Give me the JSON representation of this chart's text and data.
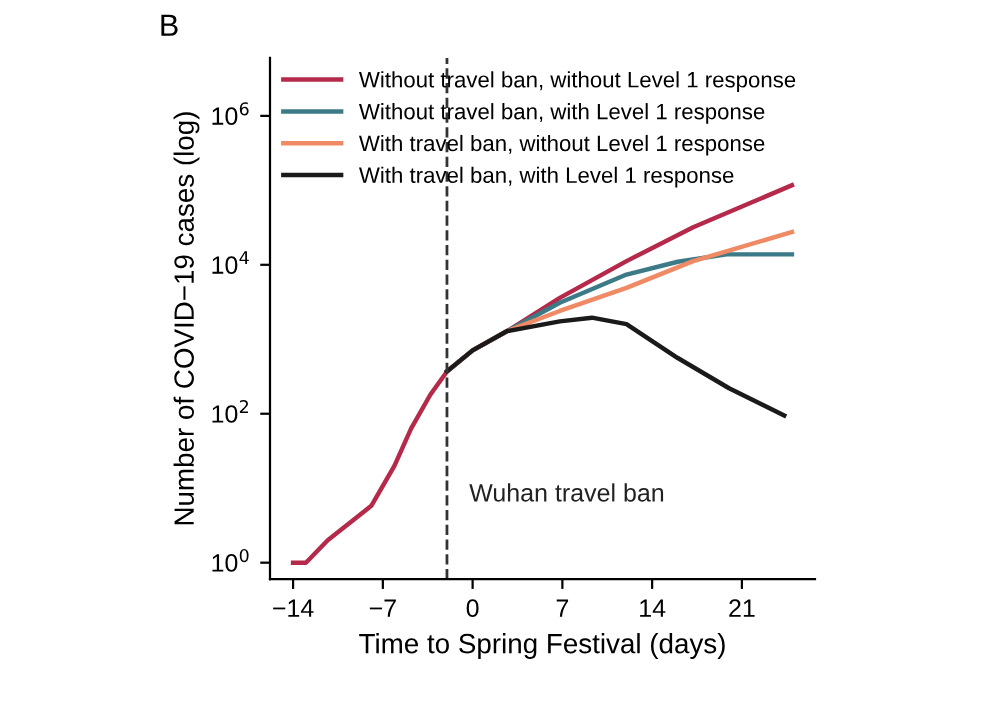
{
  "chart_data": {
    "type": "line",
    "xlabel": "Time to Spring Festival (days)",
    "ylabel": "Number of COVID−19 cases (log)",
    "annotations": [
      "B"
    ],
    "log": "y",
    "xlim": [
      -15.8,
      26.7
    ],
    "ylim": [
      0.6,
      6000000
    ],
    "xticks": [
      {
        "value": -14,
        "label": "−14"
      },
      {
        "value": -7,
        "label": "−7"
      },
      0,
      7,
      14,
      21
    ],
    "yticks": [
      {
        "value": 1,
        "label": "10$^{0}$"
      },
      {
        "value": 100,
        "label": "10$^{2}$"
      },
      {
        "value": 10000,
        "label": "10$^{4}$"
      },
      {
        "value": 1000000,
        "label": "10$^{6}$"
      }
    ],
    "grid": false,
    "legend": "top left",
    "line_style": "solid",
    "marker": "none",
    "ref_lines": [
      {
        "axis": "x",
        "value": -2,
        "label": "Wuhan travel ban",
        "color": "#333333",
        "line_style": "dashed"
      }
    ],
    "series": [
      {
        "name": "Without travel ban, without Level 1 response",
        "color": "#b5294a",
        "x": [
          -14,
          -13,
          -11.3,
          -7.9,
          -6.1,
          -4.8,
          -3.3,
          -2,
          0,
          2.7,
          6.8,
          12,
          17.2,
          24.9
        ],
        "values": [
          1,
          1,
          2,
          5.8,
          20,
          63,
          180,
          370,
          710,
          1290,
          3600,
          11200,
          32000,
          117000
        ]
      },
      {
        "name": "Without travel ban, with Level 1 response",
        "color": "#3b7a86",
        "x": [
          -2,
          0,
          2.7,
          6.8,
          12,
          16,
          19.8,
          24.9
        ],
        "values": [
          370,
          710,
          1290,
          3100,
          7400,
          11000,
          13800,
          13800
        ]
      },
      {
        "name": "With travel ban, without Level 1 response",
        "color": "#f08a64",
        "x": [
          -2,
          0,
          2.7,
          6.8,
          12,
          17.2,
          24.9
        ],
        "values": [
          370,
          710,
          1290,
          2400,
          4900,
          11200,
          27500
        ]
      },
      {
        "name": "With travel ban, with Level 1 response",
        "color": "#1a1a1a",
        "x": [
          -2,
          0,
          2.7,
          6.8,
          9.3,
          12,
          16,
          20,
          24.3
        ],
        "values": [
          370,
          710,
          1290,
          1740,
          1950,
          1600,
          560,
          220,
          95
        ]
      }
    ]
  }
}
